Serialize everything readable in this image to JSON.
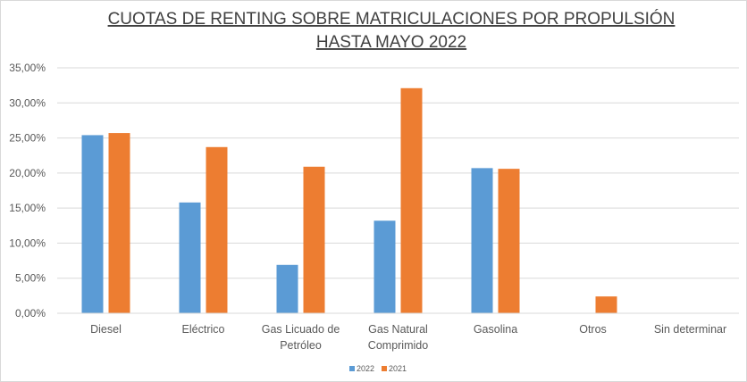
{
  "chart_data": {
    "type": "bar",
    "title": [
      "CUOTAS DE RENTING SOBRE MATRICULACIONES POR PROPULSIÓN",
      "HASTA MAYO 2022"
    ],
    "categories": [
      [
        "Diesel"
      ],
      [
        "Eléctrico"
      ],
      [
        "Gas Licuado de",
        "Petróleo"
      ],
      [
        "Gas Natural",
        "Comprimido"
      ],
      [
        "Gasolina"
      ],
      [
        "Otros"
      ],
      [
        "Sin determinar"
      ]
    ],
    "series": [
      {
        "name": "2022",
        "color": "#5b9bd5",
        "values": [
          25.4,
          15.8,
          6.9,
          13.2,
          20.7,
          0,
          0
        ]
      },
      {
        "name": "2021",
        "color": "#ed7d31",
        "values": [
          25.7,
          23.7,
          20.9,
          32.1,
          20.6,
          2.4,
          0
        ]
      }
    ],
    "ylim": [
      0,
      35
    ],
    "ytick_step": 5,
    "ytick_labels": [
      "0,00%",
      "5,00%",
      "10,00%",
      "15,00%",
      "20,00%",
      "25,00%",
      "30,00%",
      "35,00%"
    ],
    "xlabel": "",
    "ylabel": "",
    "grid": true,
    "legend_position": "bottom"
  }
}
